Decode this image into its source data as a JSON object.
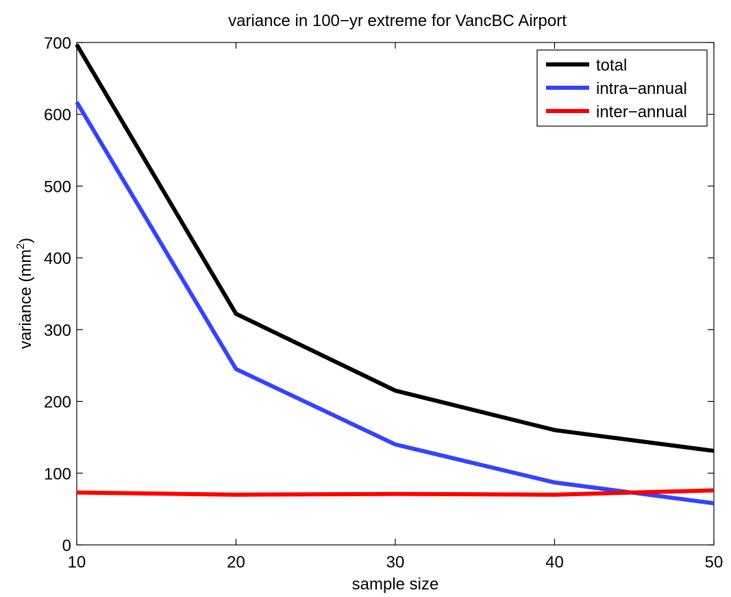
{
  "chart_data": {
    "type": "line",
    "title": "variance in 100−yr extreme for VancBC Airport",
    "xlabel": "sample size",
    "ylabel_main": "variance (mm",
    "ylabel_sup": "2",
    "ylabel_end": ")",
    "x": [
      10,
      20,
      30,
      40,
      50
    ],
    "xlim": [
      10,
      50
    ],
    "ylim": [
      0,
      700
    ],
    "xticks": [
      "10",
      "20",
      "30",
      "40",
      "50"
    ],
    "yticks": [
      "0",
      "100",
      "200",
      "300",
      "400",
      "500",
      "600",
      "700"
    ],
    "grid": false,
    "legend_position": "top-right",
    "series": [
      {
        "name": "total",
        "color": "#000000",
        "values": [
          697,
          322,
          215,
          160,
          131
        ]
      },
      {
        "name": "intra−annual",
        "color": "#3344ff",
        "values": [
          617,
          245,
          140,
          87,
          58
        ]
      },
      {
        "name": "inter−annual",
        "color": "#ff0000",
        "values": [
          73,
          70,
          71,
          70,
          76
        ]
      }
    ]
  }
}
